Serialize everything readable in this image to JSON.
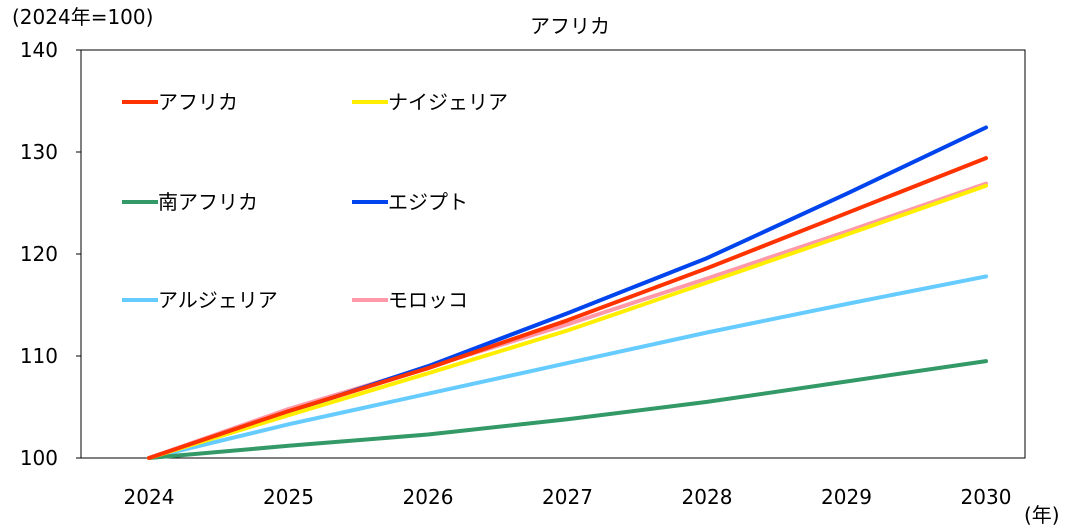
{
  "chart_data": {
    "type": "line",
    "title": "アフリカ",
    "unit_label": "(2024年=100)",
    "xlabel": "(年)",
    "ylabel": "",
    "x": [
      "2024",
      "2025",
      "2026",
      "2027",
      "2028",
      "2029",
      "2030"
    ],
    "ylim": [
      100,
      140
    ],
    "yticks": [
      "100",
      "110",
      "120",
      "130",
      "140"
    ],
    "grid": false,
    "legend_position": "top-left inside plot, 2 columns",
    "series": [
      {
        "name": "アフリカ",
        "color": "#ff3300",
        "values": [
          100,
          104.6,
          108.8,
          113.5,
          118.6,
          124.0,
          129.4
        ]
      },
      {
        "name": "ナイジェリア",
        "color": "#ffee00",
        "values": [
          100,
          104.2,
          108.3,
          112.5,
          117.2,
          121.9,
          126.7
        ]
      },
      {
        "name": "南アフリカ",
        "color": "#339966",
        "values": [
          100,
          101.2,
          102.3,
          103.8,
          105.5,
          107.5,
          109.5
        ]
      },
      {
        "name": "エジプト",
        "color": "#0044ee",
        "values": [
          100,
          104.5,
          109.0,
          114.2,
          119.6,
          125.9,
          132.4
        ]
      },
      {
        "name": "アルジェリア",
        "color": "#66ccff",
        "values": [
          100,
          103.3,
          106.3,
          109.3,
          112.3,
          115.1,
          117.8
        ]
      },
      {
        "name": "モロッコ",
        "color": "#ff99aa",
        "values": [
          100,
          104.8,
          108.9,
          113.1,
          117.6,
          122.2,
          126.9
        ]
      }
    ]
  }
}
